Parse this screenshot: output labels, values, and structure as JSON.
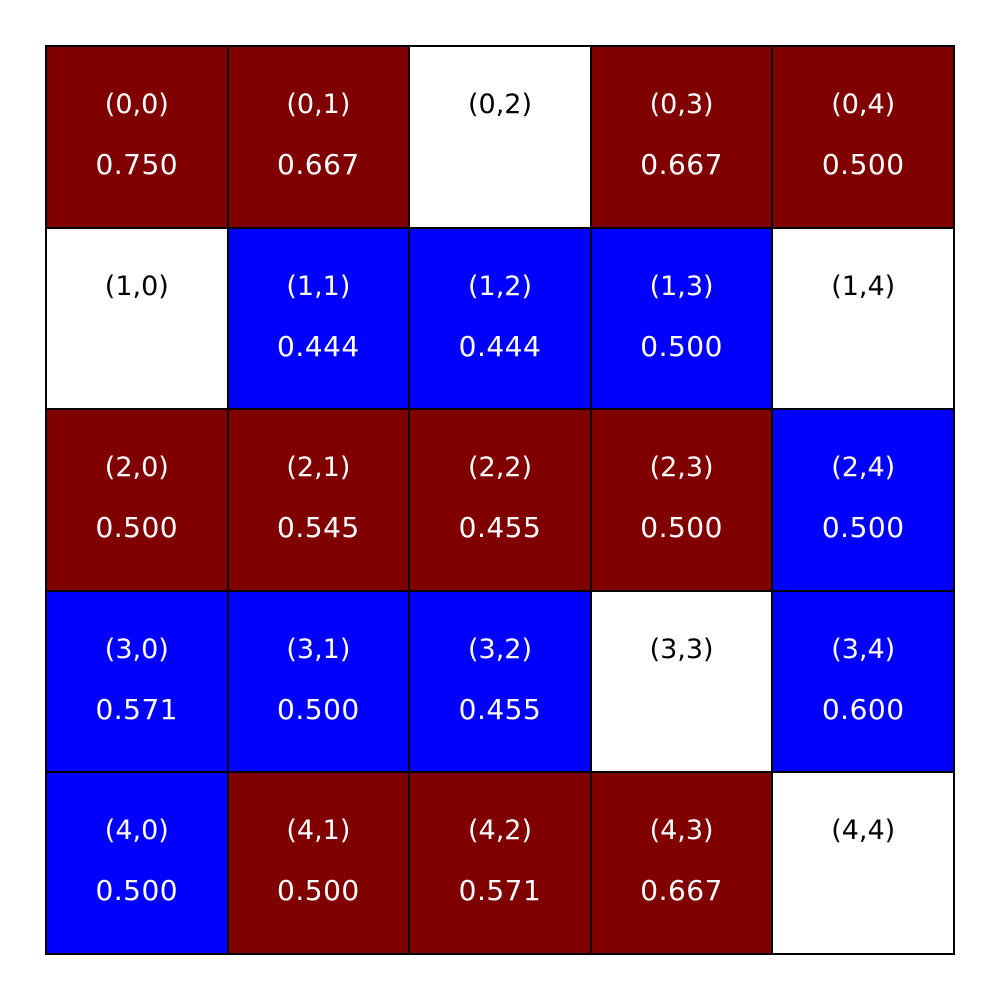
{
  "colors": {
    "red": "#800000",
    "blue": "#0000ff",
    "white": "#ffffff",
    "border": "#000000"
  },
  "grid": {
    "rows": 5,
    "cols": 5,
    "cells": [
      {
        "coord": "(0,0)",
        "value": "0.750",
        "color": "red"
      },
      {
        "coord": "(0,1)",
        "value": "0.667",
        "color": "red"
      },
      {
        "coord": "(0,2)",
        "value": "",
        "color": "white"
      },
      {
        "coord": "(0,3)",
        "value": "0.667",
        "color": "red"
      },
      {
        "coord": "(0,4)",
        "value": "0.500",
        "color": "red"
      },
      {
        "coord": "(1,0)",
        "value": "",
        "color": "white"
      },
      {
        "coord": "(1,1)",
        "value": "0.444",
        "color": "blue"
      },
      {
        "coord": "(1,2)",
        "value": "0.444",
        "color": "blue"
      },
      {
        "coord": "(1,3)",
        "value": "0.500",
        "color": "blue"
      },
      {
        "coord": "(1,4)",
        "value": "",
        "color": "white"
      },
      {
        "coord": "(2,0)",
        "value": "0.500",
        "color": "red"
      },
      {
        "coord": "(2,1)",
        "value": "0.545",
        "color": "red"
      },
      {
        "coord": "(2,2)",
        "value": "0.455",
        "color": "red"
      },
      {
        "coord": "(2,3)",
        "value": "0.500",
        "color": "red"
      },
      {
        "coord": "(2,4)",
        "value": "0.500",
        "color": "blue"
      },
      {
        "coord": "(3,0)",
        "value": "0.571",
        "color": "blue"
      },
      {
        "coord": "(3,1)",
        "value": "0.500",
        "color": "blue"
      },
      {
        "coord": "(3,2)",
        "value": "0.455",
        "color": "blue"
      },
      {
        "coord": "(3,3)",
        "value": "",
        "color": "white"
      },
      {
        "coord": "(3,4)",
        "value": "0.600",
        "color": "blue"
      },
      {
        "coord": "(4,0)",
        "value": "0.500",
        "color": "blue"
      },
      {
        "coord": "(4,1)",
        "value": "0.500",
        "color": "red"
      },
      {
        "coord": "(4,2)",
        "value": "0.571",
        "color": "red"
      },
      {
        "coord": "(4,3)",
        "value": "0.667",
        "color": "red"
      },
      {
        "coord": "(4,4)",
        "value": "",
        "color": "white"
      }
    ]
  }
}
